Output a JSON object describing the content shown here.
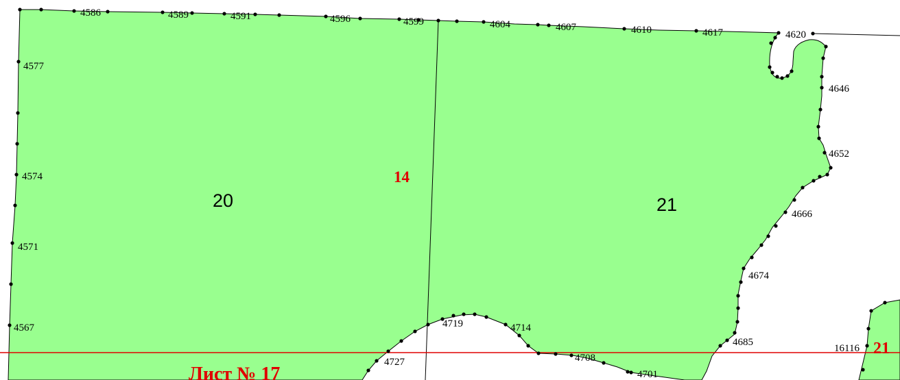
{
  "map": {
    "colors": {
      "parcel_fill": "#99ff8f",
      "boundary": "#000000",
      "sheet_line": "#e00000",
      "red_text": "#e00000"
    },
    "parcels": [
      {
        "label": "20"
      },
      {
        "label": "21"
      }
    ],
    "block_number": "14",
    "sheet_label": "Лист № 17",
    "neighbor_block": "21",
    "vertex_labels": [
      "4586",
      "4589",
      "4591",
      "4596",
      "4599",
      "4604",
      "4607",
      "4610",
      "4617",
      "4620",
      "4577",
      "4574",
      "4571",
      "4567",
      "4646",
      "4652",
      "4666",
      "4674",
      "4685",
      "4719",
      "4714",
      "4727",
      "4708",
      "4701",
      "16116"
    ]
  }
}
